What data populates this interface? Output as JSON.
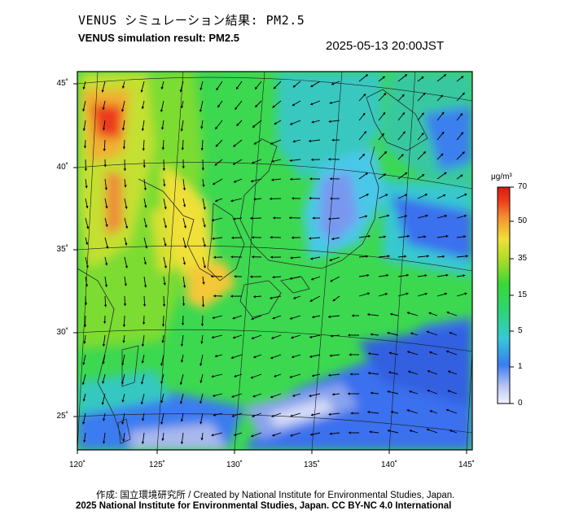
{
  "header": {
    "title_jp": "VENUS シミュレーション結果: PM2.5",
    "title_en": "VENUS simulation result: PM2.5",
    "datetime": "2025-05-13 20:00JST"
  },
  "map": {
    "lat_labels": [
      "45˚",
      "40˚",
      "35˚",
      "30˚",
      "25˚"
    ],
    "lon_labels": [
      "120˚",
      "125˚",
      "130˚",
      "135˚",
      "140˚",
      "145˚"
    ]
  },
  "colorbar": {
    "unit": "μg/m³",
    "ticks": [
      "70",
      "50",
      "35",
      "15",
      "5",
      "1",
      "0"
    ],
    "colors": [
      "#f4f4ff",
      "#b8c4f2",
      "#3a7cf0",
      "#36c8d8",
      "#2ed47a",
      "#38d838",
      "#a8dc28",
      "#f0e038",
      "#f49030",
      "#ec3a1a",
      "#d81c12"
    ]
  },
  "footer": {
    "credit": "作成: 国立環境研究所 / Created by National Institute for Environmental Studies, Japan.",
    "copyright": "2025 National Institute for Environmental Studies, Japan. CC BY-NC 4.0 International"
  }
}
